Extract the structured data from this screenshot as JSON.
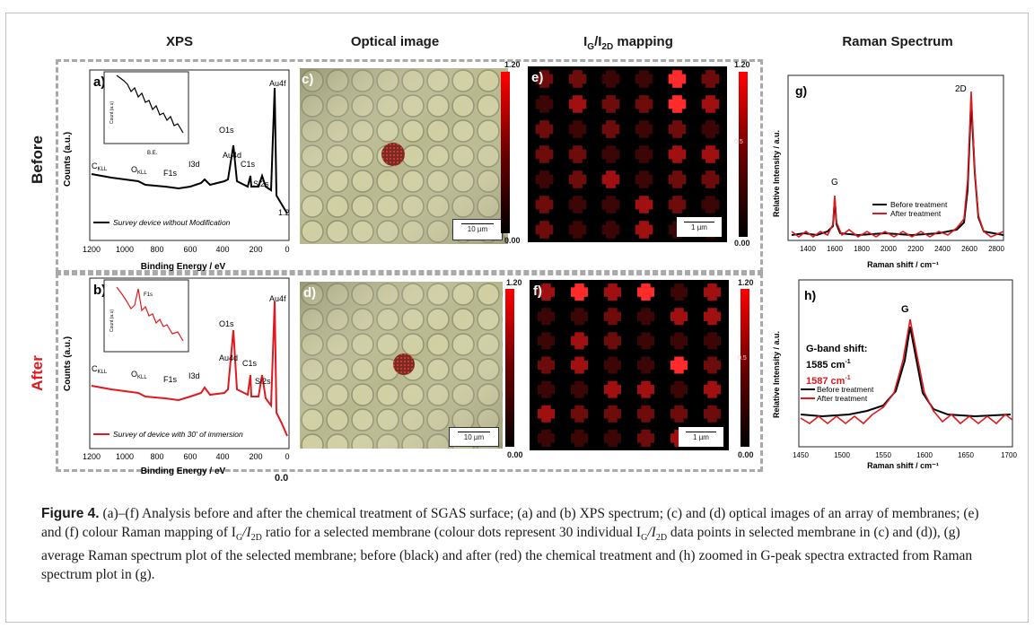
{
  "headers": {
    "xps": "XPS",
    "optical": "Optical image",
    "mapping_main": "I",
    "mapping_sub1": "G",
    "mapping_mid": "/I",
    "mapping_sub2": "2D",
    "mapping_tail": " mapping",
    "raman": "Raman Spectrum"
  },
  "rows": {
    "before": "Before",
    "after": "After"
  },
  "panel_letters": {
    "a": "a)",
    "b": "b)",
    "c": "c)",
    "d": "d)",
    "e": "e)",
    "f": "f)",
    "g": "g)",
    "h": "h)"
  },
  "xps": {
    "xlabel": "Binding Energy / eV",
    "ylabel": "Counts (a.u.)",
    "ticks": [
      "1200",
      "1000",
      "800",
      "600",
      "400",
      "200",
      "0"
    ],
    "peaks": {
      "ckll": "C",
      "ckll_sub": "KLL",
      "okll": "O",
      "okll_sub": "KLL",
      "f1s": "F1s",
      "i3d": "I3d",
      "o1s": "O1s",
      "au4d": "Au4d",
      "c1s": "C1s",
      "si2s": "Si2s",
      "au4f": "Au4f"
    },
    "legend_before": "Survey device without Modification",
    "legend_after": "Survey of device with 30' of immersion",
    "inset_ylabel": "Count (a.u)",
    "inset_xlabel": "B.E.",
    "inset_f1s": "F1s",
    "stray_a": "1.2",
    "stray_b": "0.0"
  },
  "optical": {
    "scale": "10 µm"
  },
  "mapping": {
    "scale": "1 µm",
    "cbar_max": "1.20",
    "cbar_mid": "0.5",
    "cbar_min": "0.00"
  },
  "raman": {
    "ylabel": "Relative Intensity / a.u.",
    "xlabel": "Raman shift / cm⁻¹",
    "g_ticks": [
      "1400",
      "1600",
      "1800",
      "2000",
      "2200",
      "2400",
      "2600",
      "2800"
    ],
    "h_ticks": [
      "1450",
      "1500",
      "1550",
      "1600",
      "1650",
      "1700"
    ],
    "label_g": "G",
    "label_2d": "2D",
    "legend_before": "Before treatment",
    "legend_after": "After treatment",
    "gband_title": "G-band shift:",
    "gband_before": "1585 cm",
    "gband_after": "1587 cm",
    "gband_sup": "-1"
  },
  "colors": {
    "before": "#000000",
    "after": "#e0191f"
  },
  "caption": {
    "label": "Figure 4.",
    "text": " (a)–(f) Analysis before and after the chemical treatment of SGAS surface; (a) and (b) XPS spectrum; (c) and (d) optical images of an array of membranes; (e) and (f) colour Raman mapping of I",
    "s1": "G",
    "t1": "/I",
    "s2": "2D",
    "text2": " ratio for a selected membrane (colour dots represent 30 individual I",
    "s3": "G",
    "t2": "/I",
    "s4": "2D",
    "text3": " data points in selected membrane in (c) and (d)), (g) average Raman spectrum plot of the selected membrane; before (black) and after (red) the chemical treatment and (h) zoomed in G-peak spectra extracted from Raman spectrum plot in (g)."
  }
}
